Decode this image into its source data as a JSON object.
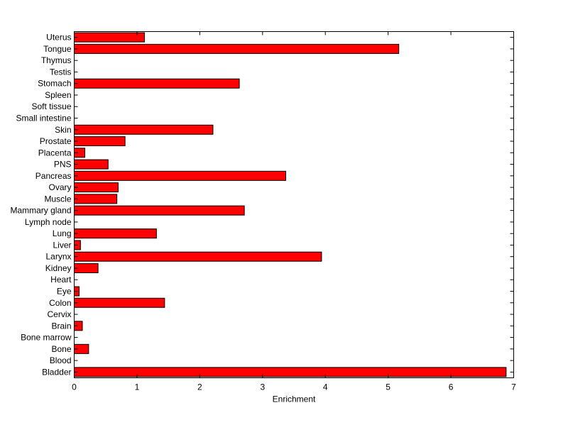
{
  "chart_data": {
    "type": "bar",
    "orientation": "horizontal",
    "title": "",
    "xlabel": "Enrichment",
    "ylabel": "",
    "xlim": [
      0,
      7
    ],
    "xticks": [
      0,
      1,
      2,
      3,
      4,
      5,
      6,
      7
    ],
    "grid": false,
    "bar_color": "#ff0000",
    "bar_edge_color": "#000000",
    "categories": [
      "Bladder",
      "Blood",
      "Bone",
      "Bone marrow",
      "Brain",
      "Cervix",
      "Colon",
      "Eye",
      "Heart",
      "Kidney",
      "Larynx",
      "Liver",
      "Lung",
      "Lymph node",
      "Mammary gland",
      "Muscle",
      "Ovary",
      "Pancreas",
      "PNS",
      "Placenta",
      "Prostate",
      "Skin",
      "Small intestine",
      "Soft tissue",
      "Spleen",
      "Stomach",
      "Testis",
      "Thymus",
      "Tongue",
      "Uterus"
    ],
    "values": [
      6.88,
      0,
      0.23,
      0,
      0.13,
      0,
      1.44,
      0.08,
      0,
      0.38,
      3.94,
      0.1,
      1.31,
      0,
      2.71,
      0.68,
      0.7,
      3.37,
      0.54,
      0.17,
      0.81,
      2.21,
      0,
      0,
      0,
      2.63,
      0,
      0,
      5.17,
      1.12
    ]
  }
}
